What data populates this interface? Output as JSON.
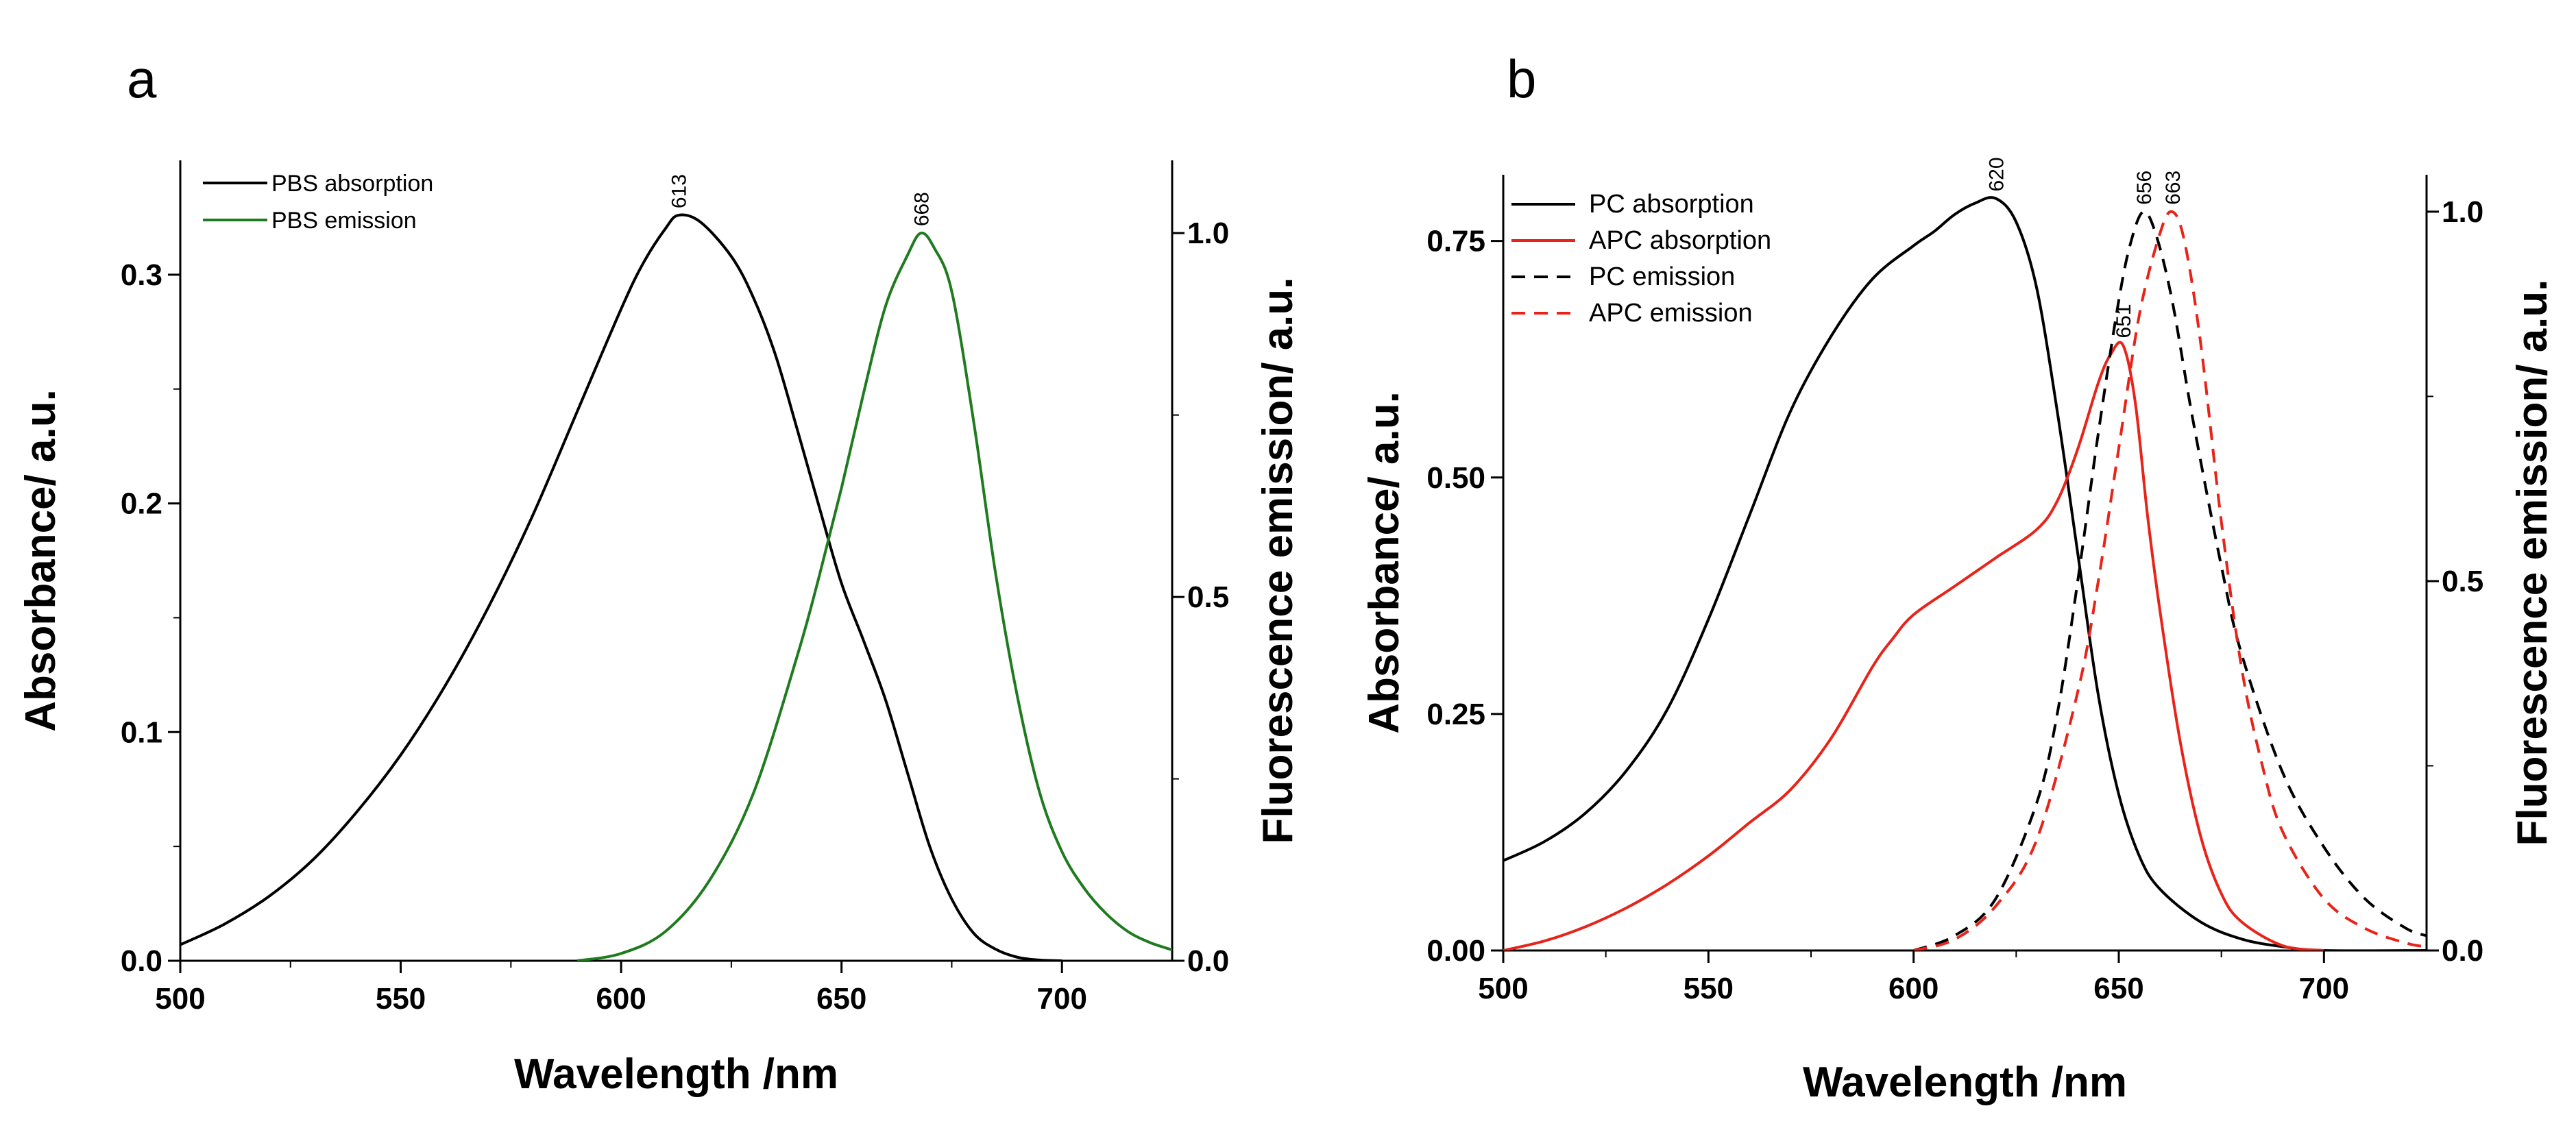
{
  "figure": {
    "panels": [
      "a",
      "b"
    ]
  },
  "chart_data": [
    {
      "panel": "a",
      "type": "line",
      "xlabel": "Wavelength /nm",
      "ylabel": "Absorbance/ a.u.",
      "y2label": "Fluorescence emission/ a.u.",
      "xlim": [
        500,
        725
      ],
      "ylim": [
        0,
        0.35
      ],
      "y2lim": [
        0,
        1.1
      ],
      "x_ticks": [
        500,
        550,
        600,
        650,
        700
      ],
      "y_ticks": [
        "0.0",
        "0.1",
        "0.2",
        "0.3"
      ],
      "y2_ticks": [
        "0.0",
        "0.5",
        "1.0"
      ],
      "legend_position": "top-left",
      "grid": false,
      "series": [
        {
          "name": "PBS absorption",
          "axis": "left",
          "color": "#000000",
          "dash": "solid",
          "peak_label": "613",
          "peak_x": 613,
          "x": [
            500,
            510,
            520,
            530,
            540,
            550,
            560,
            570,
            580,
            590,
            600,
            605,
            610,
            613,
            618,
            625,
            630,
            635,
            640,
            645,
            650,
            655,
            660,
            665,
            670,
            675,
            680,
            685,
            690,
            695,
            700
          ],
          "y": [
            0.007,
            0.016,
            0.028,
            0.044,
            0.065,
            0.09,
            0.12,
            0.155,
            0.195,
            0.24,
            0.285,
            0.305,
            0.32,
            0.326,
            0.323,
            0.308,
            0.29,
            0.265,
            0.232,
            0.198,
            0.165,
            0.14,
            0.114,
            0.082,
            0.05,
            0.027,
            0.012,
            0.005,
            0.0015,
            0.0003,
            0.0
          ]
        },
        {
          "name": "PBS emission",
          "axis": "right",
          "color": "#1e7b1e",
          "dash": "solid",
          "peak_label": "668",
          "peak_x": 668,
          "x": [
            590,
            600,
            610,
            620,
            630,
            640,
            645,
            650,
            655,
            660,
            665,
            668,
            671,
            675,
            680,
            685,
            690,
            695,
            700,
            705,
            710,
            715,
            720,
            725
          ],
          "y": [
            0.0,
            0.01,
            0.04,
            0.11,
            0.23,
            0.42,
            0.53,
            0.65,
            0.78,
            0.9,
            0.97,
            1.0,
            0.98,
            0.92,
            0.74,
            0.53,
            0.36,
            0.23,
            0.15,
            0.1,
            0.065,
            0.04,
            0.025,
            0.015
          ]
        }
      ]
    },
    {
      "panel": "b",
      "type": "line",
      "xlabel": "Wavelength /nm",
      "ylabel": "Absorbance/ a.u.",
      "y2label": "Fluorescence emission/ a.u.",
      "xlim": [
        500,
        725
      ],
      "ylim": [
        0,
        0.82
      ],
      "y2lim": [
        0,
        1.05
      ],
      "x_ticks": [
        500,
        550,
        600,
        650,
        700
      ],
      "y_ticks": [
        "0.00",
        "0.25",
        "0.50",
        "0.75"
      ],
      "y2_ticks": [
        "0.0",
        "0.5",
        "1.0"
      ],
      "legend_position": "top-left",
      "grid": false,
      "series": [
        {
          "name": "PC absorption",
          "axis": "left",
          "color": "#000000",
          "dash": "solid",
          "peak_label": "620",
          "peak_x": 620,
          "x": [
            500,
            510,
            520,
            530,
            540,
            550,
            560,
            570,
            580,
            590,
            600,
            605,
            610,
            615,
            620,
            625,
            630,
            635,
            640,
            645,
            650,
            655,
            660,
            670,
            680,
            690,
            700,
            725
          ],
          "y": [
            0.095,
            0.115,
            0.145,
            0.19,
            0.255,
            0.35,
            0.46,
            0.57,
            0.65,
            0.71,
            0.745,
            0.76,
            0.778,
            0.79,
            0.795,
            0.77,
            0.7,
            0.57,
            0.42,
            0.27,
            0.165,
            0.1,
            0.065,
            0.03,
            0.012,
            0.004,
            0.0,
            0.0
          ]
        },
        {
          "name": "APC absorption",
          "axis": "left",
          "color": "#e8231a",
          "dash": "solid",
          "peak_label": "651",
          "peak_x": 651,
          "x": [
            500,
            510,
            520,
            530,
            540,
            550,
            560,
            570,
            580,
            590,
            595,
            600,
            610,
            620,
            630,
            635,
            640,
            645,
            648,
            651,
            654,
            657,
            660,
            665,
            670,
            675,
            680,
            690,
            700
          ],
          "y": [
            0.0,
            0.01,
            0.025,
            0.045,
            0.07,
            0.1,
            0.135,
            0.17,
            0.225,
            0.3,
            0.33,
            0.355,
            0.385,
            0.415,
            0.445,
            0.475,
            0.53,
            0.6,
            0.63,
            0.64,
            0.58,
            0.46,
            0.36,
            0.22,
            0.12,
            0.06,
            0.03,
            0.005,
            0.0
          ]
        },
        {
          "name": "PC emission",
          "axis": "right",
          "color": "#000000",
          "dash": "dashed",
          "peak_label": "656",
          "peak_x": 656,
          "x": [
            600,
            610,
            620,
            630,
            635,
            640,
            645,
            650,
            653,
            656,
            659,
            663,
            668,
            675,
            680,
            690,
            700,
            710,
            720,
            725
          ],
          "y": [
            0.0,
            0.02,
            0.07,
            0.2,
            0.32,
            0.5,
            0.7,
            0.88,
            0.96,
            1.0,
            0.97,
            0.88,
            0.72,
            0.52,
            0.4,
            0.24,
            0.14,
            0.07,
            0.03,
            0.02
          ]
        },
        {
          "name": "APC emission",
          "axis": "right",
          "color": "#e8231a",
          "dash": "dashed",
          "peak_label": "663",
          "peak_x": 663,
          "x": [
            600,
            610,
            620,
            630,
            640,
            645,
            650,
            655,
            660,
            663,
            666,
            670,
            675,
            680,
            685,
            690,
            700,
            710,
            720,
            725
          ],
          "y": [
            0.0,
            0.015,
            0.06,
            0.15,
            0.35,
            0.5,
            0.68,
            0.86,
            0.97,
            1.0,
            0.96,
            0.82,
            0.58,
            0.38,
            0.25,
            0.16,
            0.07,
            0.03,
            0.01,
            0.005
          ]
        }
      ]
    }
  ]
}
